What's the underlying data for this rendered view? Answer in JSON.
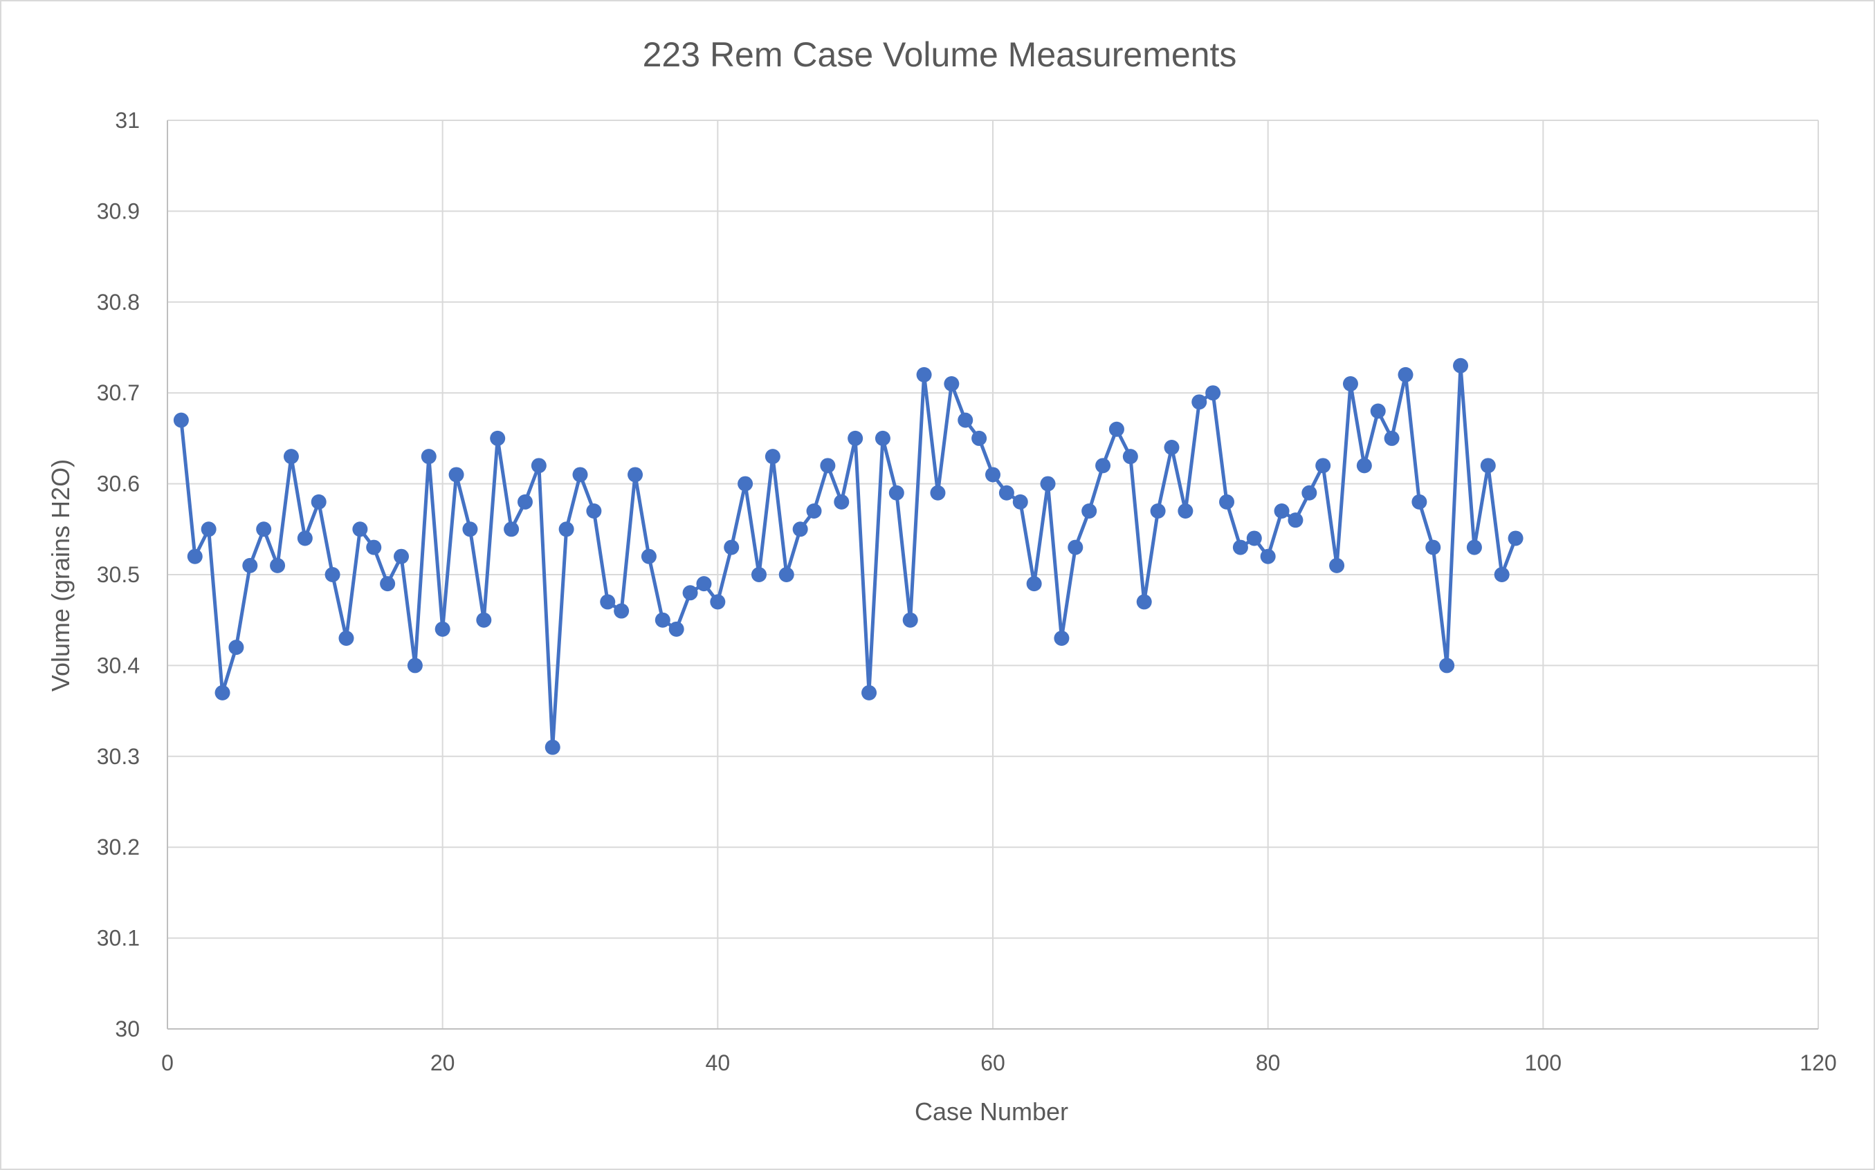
{
  "chart_data": {
    "type": "scatter",
    "title": "223 Rem Case Volume Measurements",
    "xlabel": "Case Number",
    "ylabel": "Volume (grains H2O)",
    "xlim": [
      0,
      120
    ],
    "ylim": [
      30,
      31
    ],
    "x_ticks": [
      0,
      20,
      40,
      60,
      80,
      100,
      120
    ],
    "y_ticks": [
      30,
      30.1,
      30.2,
      30.3,
      30.4,
      30.5,
      30.6,
      30.7,
      30.8,
      30.9,
      31
    ],
    "grid": true,
    "legend": "none",
    "line_color": "#4472c4",
    "markers": true,
    "lines": true,
    "series": [
      {
        "x": [
          1,
          2,
          3,
          4,
          5,
          6,
          7,
          8,
          9,
          10,
          11,
          12,
          13,
          14,
          15,
          16,
          17,
          18,
          19,
          20,
          21,
          22,
          23,
          24,
          25,
          26,
          27,
          28,
          29,
          30,
          31,
          32,
          33,
          34,
          35,
          36,
          37,
          38,
          39,
          40,
          41,
          42,
          43,
          44,
          45,
          46,
          47,
          48,
          49,
          50,
          51,
          52,
          53,
          54,
          55,
          56,
          57,
          58,
          59,
          60,
          61,
          62,
          63,
          64,
          65,
          66,
          67,
          68,
          69,
          70,
          71,
          72,
          73,
          74,
          75,
          76,
          77,
          78,
          79,
          80,
          81,
          82,
          83,
          84,
          85,
          86,
          87,
          88,
          89,
          90,
          91,
          92,
          93,
          94,
          95,
          96,
          97,
          98
        ],
        "y": [
          30.67,
          30.52,
          30.55,
          30.37,
          30.42,
          30.51,
          30.55,
          30.51,
          30.63,
          30.54,
          30.58,
          30.5,
          30.43,
          30.55,
          30.53,
          30.49,
          30.52,
          30.4,
          30.63,
          30.44,
          30.61,
          30.55,
          30.45,
          30.65,
          30.55,
          30.58,
          30.62,
          30.31,
          30.55,
          30.61,
          30.57,
          30.47,
          30.46,
          30.61,
          30.52,
          30.45,
          30.44,
          30.48,
          30.49,
          30.47,
          30.53,
          30.6,
          30.5,
          30.63,
          30.5,
          30.55,
          30.57,
          30.62,
          30.58,
          30.65,
          30.37,
          30.65,
          30.59,
          30.45,
          30.72,
          30.59,
          30.71,
          30.67,
          30.65,
          30.61,
          30.59,
          30.58,
          30.49,
          30.6,
          30.43,
          30.53,
          30.57,
          30.62,
          30.66,
          30.63,
          30.47,
          30.57,
          30.64,
          30.57,
          30.69,
          30.7,
          30.58,
          30.53,
          30.54,
          30.52,
          30.57,
          30.56,
          30.59,
          30.62,
          30.51,
          30.71,
          30.62,
          30.68,
          30.65,
          30.72,
          30.58,
          30.53,
          30.4,
          30.73,
          30.53,
          30.62,
          30.5,
          30.54
        ]
      }
    ]
  }
}
